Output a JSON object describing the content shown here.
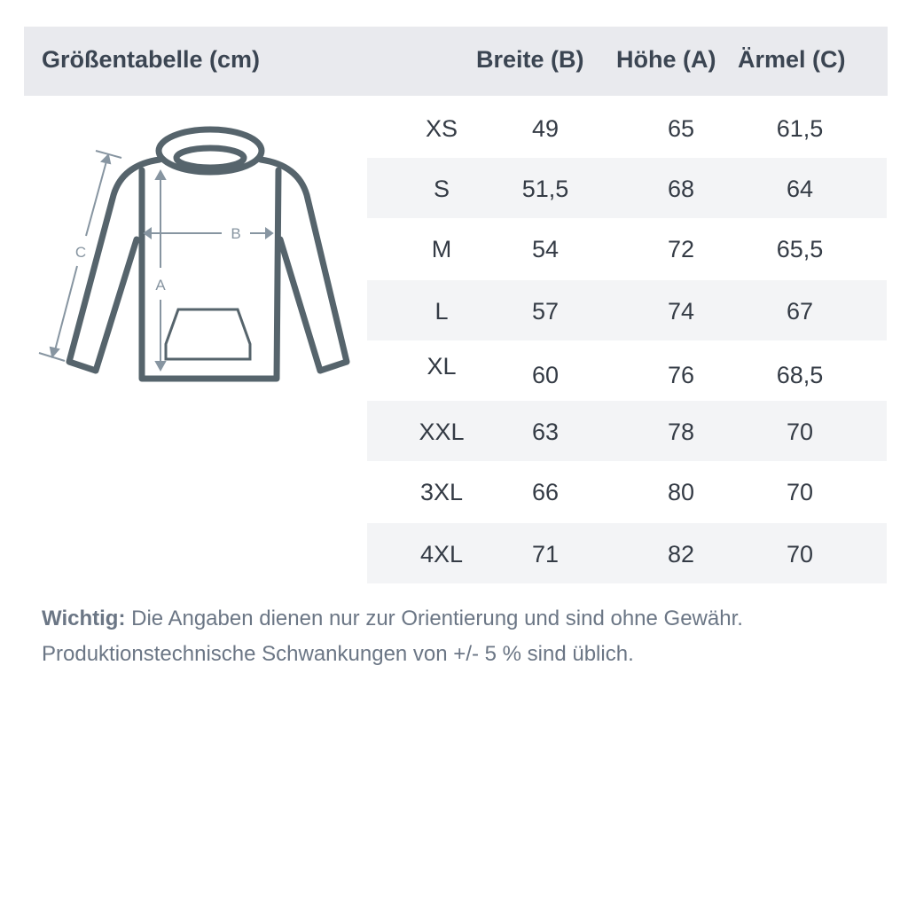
{
  "header": {
    "title": "Größentabelle (cm)",
    "columns": [
      "Breite (B)",
      "Höhe (A)",
      "Ärmel (C)"
    ]
  },
  "diagram": {
    "labels": {
      "a": "A",
      "b": "B",
      "c": "C"
    },
    "stroke_color": "#56646c",
    "arrow_color": "#8795a1"
  },
  "rows": [
    {
      "size": "XS",
      "breite": "49",
      "hoehe": "65",
      "aermel": "61,5"
    },
    {
      "size": "S",
      "breite": "51,5",
      "hoehe": "68",
      "aermel": "64"
    },
    {
      "size": "M",
      "breite": "54",
      "hoehe": "72",
      "aermel": "65,5"
    },
    {
      "size": "L",
      "breite": "57",
      "hoehe": "74",
      "aermel": "67"
    },
    {
      "size": "XL",
      "breite": "60",
      "hoehe": "76",
      "aermel": "68,5"
    },
    {
      "size": "XXL",
      "breite": "63",
      "hoehe": "78",
      "aermel": "70"
    },
    {
      "size": "3XL",
      "breite": "66",
      "hoehe": "80",
      "aermel": "70"
    },
    {
      "size": "4XL",
      "breite": "71",
      "hoehe": "82",
      "aermel": "70"
    }
  ],
  "footer": {
    "label": "Wichtig:",
    "line1": " Die Angaben dienen nur zur Orientierung und sind ohne Gewähr.",
    "line2": "Produktionstechnische Schwankungen von +/- 5 % sind üblich."
  }
}
